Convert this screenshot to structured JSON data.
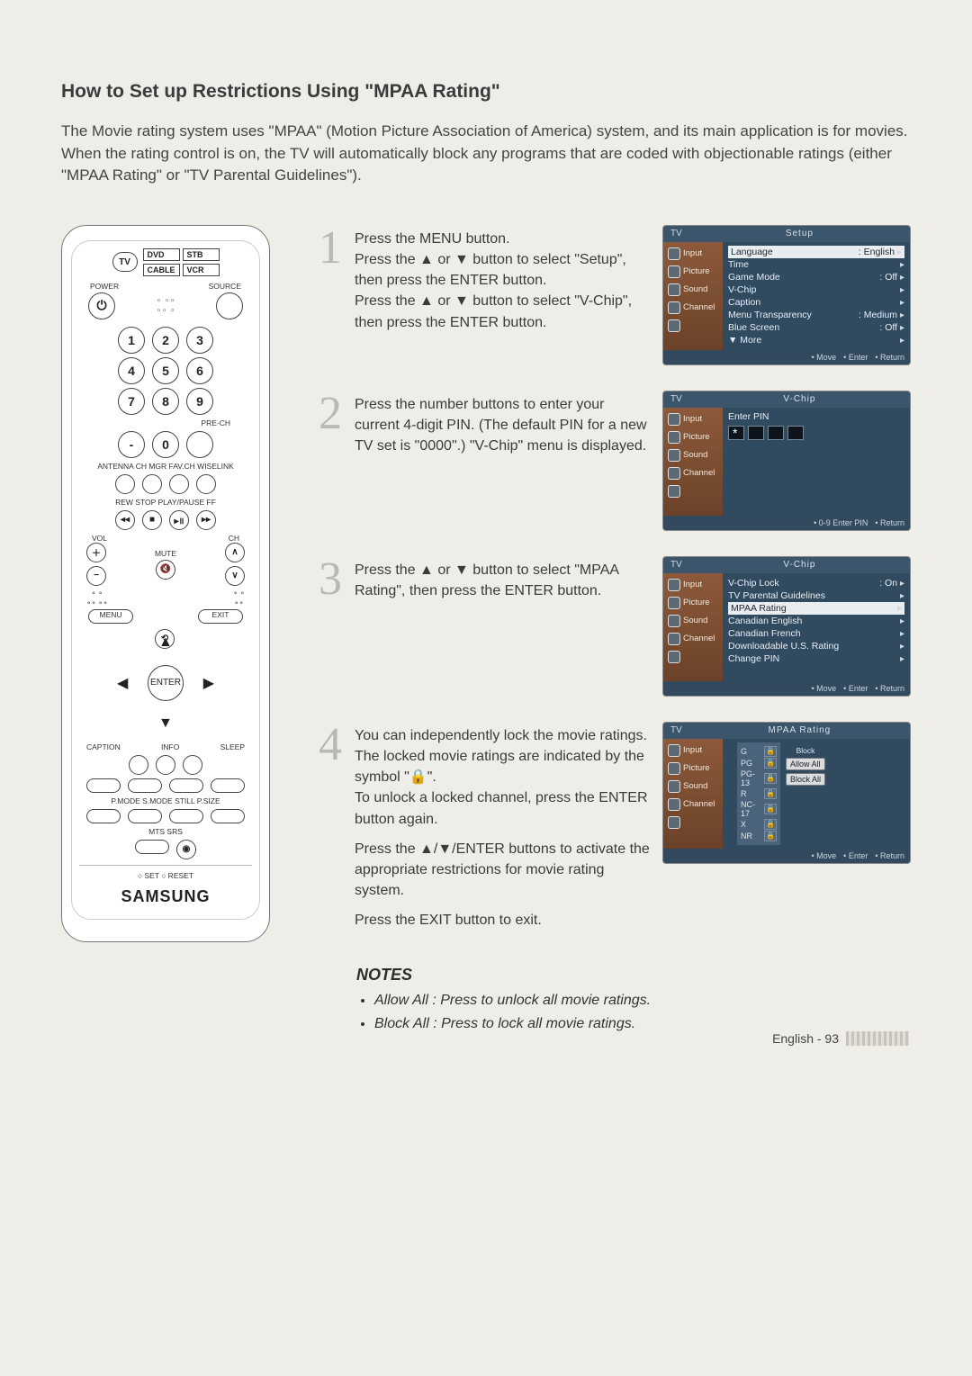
{
  "page": {
    "title": "How to Set up Restrictions Using \"MPAA Rating\"",
    "intro_1": "The Movie rating system uses \"MPAA\" (Motion Picture Association of America) system, and its main application is for movies.",
    "intro_2": "When the rating control is on, the TV will automatically block any programs that are coded with objectionable ratings (either \"MPAA Rating\" or \"TV Parental Guidelines\").",
    "footer": "English - 93"
  },
  "remote": {
    "top_tv": "TV",
    "top_btns": [
      "DVD",
      "STB",
      "CABLE",
      "VCR"
    ],
    "power": "POWER",
    "source": "SOURCE",
    "digits": [
      "1",
      "2",
      "3",
      "4",
      "5",
      "6",
      "7",
      "8",
      "9",
      "-",
      "0"
    ],
    "under_digits": "PRE-CH",
    "row_labels": "ANTENNA  CH MGR  FAV.CH  WISELINK",
    "transport_labels": "REW   STOP   PLAY/PAUSE   FF",
    "vol": "VOL",
    "ch": "CH",
    "mute": "MUTE",
    "menu": "MENU",
    "exit": "EXIT",
    "enter": "ENTER",
    "caption": "CAPTION",
    "info": "INFO",
    "sleep": "SLEEP",
    "row2": "P.MODE  S.MODE  STILL  P.SIZE",
    "row3": "MTS   SRS",
    "set_reset": "○ SET    ○ RESET",
    "brand": "SAMSUNG"
  },
  "steps": [
    {
      "num": "1",
      "text": "Press the MENU button.\nPress the ▲ or ▼ button to select \"Setup\", then press the ENTER button.\nPress the ▲ or ▼ button to select \"V-Chip\", then press the ENTER button."
    },
    {
      "num": "2",
      "text": "Press the number buttons to enter your current 4-digit PIN. (The default PIN for a new TV set is \"0000\".) \"V-Chip\" menu is displayed."
    },
    {
      "num": "3",
      "text": "Press the ▲ or ▼ button to select \"MPAA Rating\", then press the ENTER button."
    },
    {
      "num": "4",
      "p1": "You can independently lock the movie ratings. The locked movie ratings are indicated by the symbol \"🔒\".\nTo unlock a locked channel, press the ENTER button again.",
      "p2": "Press the ▲/▼/ENTER buttons to activate the appropriate restrictions for movie rating system.",
      "p3": "Press the EXIT button to exit."
    }
  ],
  "osd_common": {
    "tv": "TV",
    "side": [
      "Input",
      "Picture",
      "Sound",
      "Channel",
      ""
    ],
    "footer_move": "Move",
    "footer_enter": "Enter",
    "footer_return": "Return",
    "footer_pin": "0-9 Enter PIN"
  },
  "osd1": {
    "title": "Setup",
    "rows": [
      {
        "label": "Language",
        "value": ": English",
        "hl": true
      },
      {
        "label": "Time",
        "value": ""
      },
      {
        "label": "Game Mode",
        "value": ": Off"
      },
      {
        "label": "V-Chip",
        "value": ""
      },
      {
        "label": "Caption",
        "value": ""
      },
      {
        "label": "Menu Transparency",
        "value": ": Medium"
      },
      {
        "label": "Blue Screen",
        "value": ": Off"
      },
      {
        "label": "▼ More",
        "value": ""
      }
    ]
  },
  "osd2": {
    "title": "V-Chip",
    "enter_pin": "Enter PIN"
  },
  "osd3": {
    "title": "V-Chip",
    "rows": [
      {
        "label": "V-Chip Lock",
        "value": ": On"
      },
      {
        "label": "TV Parental Guidelines",
        "value": ""
      },
      {
        "label": "MPAA Rating",
        "value": "",
        "hl": true
      },
      {
        "label": "Canadian English",
        "value": ""
      },
      {
        "label": "Canadian French",
        "value": ""
      },
      {
        "label": "Downloadable U.S. Rating",
        "value": ""
      },
      {
        "label": "Change PIN",
        "value": ""
      }
    ]
  },
  "osd4": {
    "title": "MPAA Rating",
    "block": "Block",
    "allow": "Allow All",
    "blockall": "Block All",
    "ratings": [
      "G",
      "PG",
      "PG-13",
      "R",
      "NC-17",
      "X",
      "NR"
    ]
  },
  "notes": {
    "title": "NOTES",
    "items": [
      "Allow All : Press to unlock all movie ratings.",
      "Block All : Press to lock all movie ratings."
    ]
  }
}
